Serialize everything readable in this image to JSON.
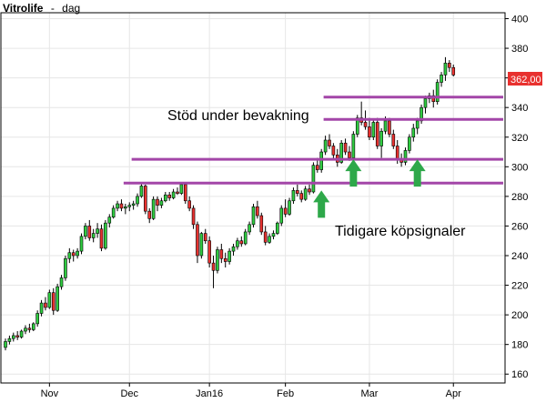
{
  "header": {
    "ticker": "Vitrolife",
    "separator": "-",
    "period": "dag"
  },
  "annotations": {
    "support": "Stöd under bevakning",
    "signals": "Tidigare köpsignaler"
  },
  "price_badge": {
    "label": "362,00",
    "color": "#e8312f"
  },
  "colors": {
    "up": "#2ecc40",
    "down": "#e8312f",
    "line": "#a346a8",
    "arrow": "#2ea84a",
    "grid": "#e6e6e6"
  },
  "chart_data": {
    "type": "candlestick",
    "title": "Vitrolife - dag",
    "ylim": [
      154,
      404
    ],
    "yticks": [
      160,
      180,
      200,
      220,
      240,
      260,
      280,
      300,
      320,
      340,
      360,
      380,
      400
    ],
    "ytick_labels": [
      "160",
      "180",
      "200",
      "220",
      "240",
      "260",
      "280",
      "300",
      "320",
      "340",
      "360",
      "380",
      "400"
    ],
    "xtick_labels": [
      {
        "label": "Nov",
        "index": 11
      },
      {
        "label": "Dec",
        "index": 31
      },
      {
        "label": "Jan16",
        "index": 51
      },
      {
        "label": "Feb",
        "index": 70
      },
      {
        "label": "Mar",
        "index": 91
      },
      {
        "label": "Apr",
        "index": 112
      }
    ],
    "last_price": 362.0,
    "support_lines": [
      {
        "value": 347,
        "from_index": 80,
        "to_index": 124
      },
      {
        "value": 332,
        "from_index": 80,
        "to_index": 124
      },
      {
        "value": 305,
        "from_index": 32,
        "to_index": 124
      },
      {
        "value": 289,
        "from_index": 30,
        "to_index": 124
      }
    ],
    "buy_signals": [
      {
        "index": 79,
        "value": 284
      },
      {
        "index": 87,
        "value": 305
      },
      {
        "index": 103,
        "value": 305
      }
    ],
    "ohlc": [
      [
        178,
        184,
        176,
        182
      ],
      [
        182,
        186,
        180,
        184
      ],
      [
        184,
        188,
        182,
        186
      ],
      [
        186,
        189,
        183,
        185
      ],
      [
        185,
        190,
        184,
        189
      ],
      [
        189,
        193,
        187,
        191
      ],
      [
        191,
        194,
        188,
        190
      ],
      [
        190,
        195,
        189,
        194
      ],
      [
        194,
        203,
        192,
        201
      ],
      [
        201,
        210,
        199,
        208
      ],
      [
        208,
        212,
        203,
        205
      ],
      [
        205,
        217,
        204,
        215
      ],
      [
        215,
        218,
        200,
        203
      ],
      [
        203,
        221,
        202,
        219
      ],
      [
        219,
        227,
        217,
        225
      ],
      [
        225,
        240,
        223,
        238
      ],
      [
        238,
        245,
        235,
        242
      ],
      [
        242,
        244,
        236,
        240
      ],
      [
        240,
        245,
        238,
        243
      ],
      [
        243,
        255,
        241,
        253
      ],
      [
        253,
        262,
        251,
        260
      ],
      [
        260,
        264,
        250,
        252
      ],
      [
        252,
        258,
        249,
        255
      ],
      [
        255,
        262,
        252,
        258
      ],
      [
        258,
        261,
        243,
        245
      ],
      [
        245,
        264,
        244,
        262
      ],
      [
        262,
        268,
        259,
        266
      ],
      [
        266,
        274,
        265,
        272
      ],
      [
        272,
        277,
        270,
        275
      ],
      [
        275,
        278,
        270,
        272
      ],
      [
        272,
        275,
        268,
        273
      ],
      [
        273,
        276,
        270,
        274
      ],
      [
        274,
        277,
        271,
        275
      ],
      [
        275,
        282,
        273,
        280
      ],
      [
        280,
        289,
        279,
        287
      ],
      [
        287,
        288,
        268,
        270
      ],
      [
        270,
        272,
        262,
        265
      ],
      [
        265,
        280,
        264,
        278
      ],
      [
        278,
        280,
        270,
        274
      ],
      [
        274,
        279,
        272,
        277
      ],
      [
        277,
        283,
        276,
        281
      ],
      [
        281,
        283,
        277,
        279
      ],
      [
        279,
        285,
        278,
        283
      ],
      [
        283,
        286,
        281,
        282
      ],
      [
        282,
        289,
        281,
        288
      ],
      [
        288,
        289,
        275,
        277
      ],
      [
        277,
        280,
        270,
        272
      ],
      [
        272,
        274,
        258,
        261
      ],
      [
        261,
        263,
        235,
        240
      ],
      [
        240,
        256,
        238,
        255
      ],
      [
        255,
        258,
        248,
        250
      ],
      [
        250,
        253,
        232,
        235
      ],
      [
        235,
        240,
        218,
        230
      ],
      [
        230,
        246,
        228,
        244
      ],
      [
        244,
        248,
        235,
        238
      ],
      [
        238,
        242,
        232,
        236
      ],
      [
        236,
        245,
        234,
        243
      ],
      [
        243,
        248,
        240,
        246
      ],
      [
        246,
        252,
        244,
        250
      ],
      [
        250,
        253,
        246,
        248
      ],
      [
        248,
        258,
        247,
        256
      ],
      [
        256,
        263,
        254,
        261
      ],
      [
        261,
        275,
        259,
        273
      ],
      [
        273,
        277,
        265,
        267
      ],
      [
        267,
        269,
        254,
        256
      ],
      [
        256,
        260,
        247,
        249
      ],
      [
        249,
        255,
        248,
        253
      ],
      [
        253,
        257,
        251,
        255
      ],
      [
        255,
        263,
        254,
        262
      ],
      [
        262,
        274,
        260,
        272
      ],
      [
        272,
        278,
        266,
        268
      ],
      [
        268,
        279,
        267,
        277
      ],
      [
        277,
        286,
        275,
        284
      ],
      [
        284,
        288,
        280,
        282
      ],
      [
        282,
        284,
        276,
        278
      ],
      [
        278,
        287,
        277,
        285
      ],
      [
        285,
        288,
        281,
        283
      ],
      [
        283,
        303,
        282,
        301
      ],
      [
        301,
        306,
        296,
        298
      ],
      [
        298,
        312,
        296,
        310
      ],
      [
        310,
        321,
        308,
        318
      ],
      [
        318,
        322,
        312,
        314
      ],
      [
        314,
        316,
        305,
        308
      ],
      [
        308,
        312,
        300,
        303
      ],
      [
        303,
        318,
        302,
        316
      ],
      [
        316,
        319,
        308,
        310
      ],
      [
        310,
        314,
        304,
        306
      ],
      [
        306,
        324,
        305,
        322
      ],
      [
        322,
        335,
        320,
        333
      ],
      [
        333,
        344,
        328,
        330
      ],
      [
        330,
        338,
        325,
        327
      ],
      [
        327,
        333,
        318,
        320
      ],
      [
        320,
        332,
        318,
        330
      ],
      [
        330,
        333,
        312,
        314
      ],
      [
        314,
        326,
        306,
        324
      ],
      [
        324,
        334,
        322,
        331
      ],
      [
        331,
        333,
        320,
        322
      ],
      [
        322,
        325,
        312,
        314
      ],
      [
        314,
        318,
        302,
        305
      ],
      [
        305,
        309,
        300,
        303
      ],
      [
        303,
        313,
        301,
        311
      ],
      [
        311,
        322,
        309,
        320
      ],
      [
        320,
        329,
        317,
        326
      ],
      [
        326,
        333,
        322,
        331
      ],
      [
        331,
        342,
        329,
        340
      ],
      [
        340,
        348,
        336,
        346
      ],
      [
        346,
        350,
        343,
        348
      ],
      [
        348,
        352,
        340,
        344
      ],
      [
        344,
        359,
        342,
        357
      ],
      [
        357,
        364,
        354,
        362
      ],
      [
        362,
        374,
        358,
        370
      ],
      [
        370,
        372,
        364,
        367
      ],
      [
        367,
        369,
        361,
        362
      ]
    ]
  }
}
